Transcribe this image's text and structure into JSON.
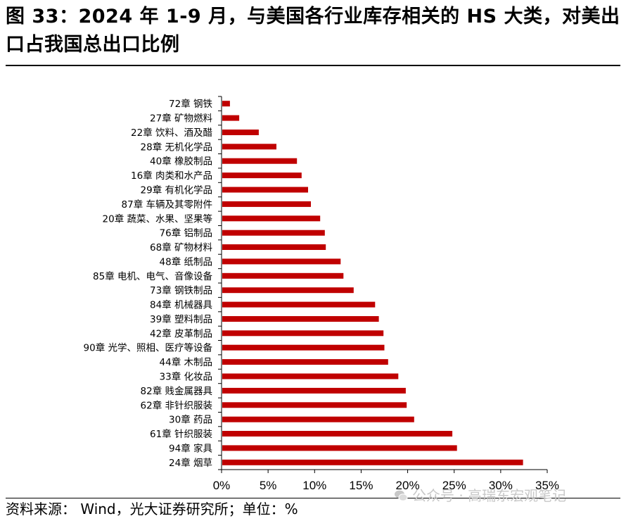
{
  "title": "图 33：2024 年 1-9 月，与美国各行业库存相关的 HS 大类，对美出口占我国总出口比例",
  "source": "资料来源：  Wind，光大证券研究所；单位：%",
  "watermark": "公众号 · 高瑞东宏观笔记",
  "watermark_icon": "wechat-icon",
  "colors": {
    "bar": "#c00000",
    "axis": "#000000"
  },
  "chart_data": {
    "type": "bar",
    "orientation": "horizontal",
    "categories": [
      "72章 钢铁",
      "27章 矿物燃料",
      "22章 饮料、酒及醋",
      "28章 无机化学品",
      "40章 橡胶制品",
      "16章 肉类和水产品",
      "29章 有机化学品",
      "87章 车辆及其零附件",
      "20章 蔬菜、水果、坚果等",
      "76章 铝制品",
      "68章 矿物材料",
      "48章 纸制品",
      "85章 电机、电气、音像设备",
      "73章 钢铁制品",
      "84章 机械器具",
      "39章 塑料制品",
      "42章 皮革制品",
      "90章 光学、照相、医疗等设备",
      "44章 木制品",
      "33章 化妆品",
      "82章 贱金属器具",
      "62章 非针织服装",
      "30章 药品",
      "61章 针织服装",
      "94章 家具",
      "24章 烟草"
    ],
    "values": [
      0.9,
      1.9,
      4.0,
      5.9,
      8.1,
      8.6,
      9.3,
      9.6,
      10.6,
      11.1,
      11.2,
      12.8,
      13.1,
      14.2,
      16.5,
      16.9,
      17.4,
      17.5,
      17.9,
      19.0,
      19.8,
      19.9,
      20.7,
      24.8,
      25.3,
      32.4
    ],
    "xlim": [
      0,
      35
    ],
    "xticks": [
      "0%",
      "5%",
      "10%",
      "15%",
      "20%",
      "25%",
      "30%",
      "35%"
    ],
    "xlabel": "",
    "ylabel": "",
    "grid": false,
    "legend": "none"
  }
}
